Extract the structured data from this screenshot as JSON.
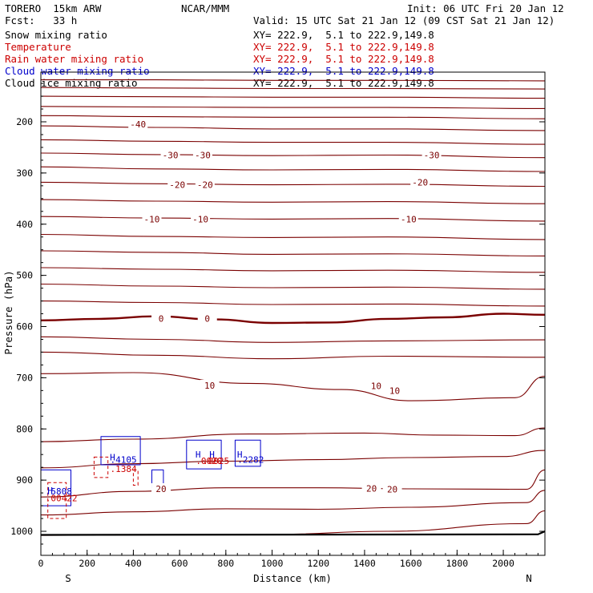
{
  "header": {
    "model": "TORERO  15km ARW",
    "center": "NCAR/MMM",
    "init": "Init: 06 UTC Fri 20 Jan 12",
    "fcst": "Fcst:   33 h",
    "valid": "Valid: 15 UTC Sat 21 Jan 12 (09 CST Sat 21 Jan 12)"
  },
  "legend": [
    {
      "name": "Snow mixing ratio",
      "xy": "XY= 222.9,  5.1 to 222.9,149.8",
      "color": "#000000"
    },
    {
      "name": "Temperature",
      "xy": "XY= 222.9,  5.1 to 222.9,149.8",
      "color": "#cc0000"
    },
    {
      "name": "Rain water mixing ratio",
      "xy": "XY= 222.9,  5.1 to 222.9,149.8",
      "color": "#cc0000"
    },
    {
      "name": "Cloud water mixing ratio",
      "xy": "XY= 222.9,  5.1 to 222.9,149.8",
      "color": "#0000cc"
    },
    {
      "name": "Cloud ice mixing ratio",
      "xy": "XY= 222.9,  5.1 to 222.9,149.8",
      "color": "#000000"
    }
  ],
  "colors": {
    "temperature": "#7a0000",
    "cloud_water": "#0000cc",
    "rain": "#cc0000",
    "ground": "#000000"
  },
  "chart_data": {
    "type": "line",
    "title": "Vertical cross-section",
    "xlabel": "Distance (km)",
    "ylabel": "Pressure (hPa)",
    "xlim": [
      0,
      2180
    ],
    "ylim": [
      100,
      1045
    ],
    "x_ticks": [
      0,
      200,
      400,
      600,
      800,
      1000,
      1200,
      1400,
      1600,
      1800,
      2000
    ],
    "y_ticks": [
      200,
      300,
      400,
      500,
      600,
      700,
      800,
      900,
      1000
    ],
    "x_end_labels": {
      "left": "S",
      "right": "N"
    },
    "temperature_isotherms": [
      {
        "level": -65,
        "x": [
          0,
          500,
          1000,
          1500,
          2180
        ],
        "p": [
          118,
          118,
          119,
          119,
          120
        ],
        "bold": false
      },
      {
        "level": -60,
        "x": [
          0,
          500,
          1000,
          1500,
          2180
        ],
        "p": [
          133,
          134,
          135,
          135,
          136
        ],
        "bold": false
      },
      {
        "level": -55,
        "x": [
          0,
          500,
          1000,
          1500,
          2180
        ],
        "p": [
          150,
          151,
          152,
          152,
          154
        ],
        "bold": false
      },
      {
        "level": -50,
        "x": [
          0,
          500,
          1000,
          1500,
          2180
        ],
        "p": [
          170,
          171,
          172,
          172,
          174
        ],
        "bold": false
      },
      {
        "level": -45,
        "x": [
          0,
          500,
          1000,
          1500,
          2180
        ],
        "p": [
          188,
          190,
          191,
          191,
          194
        ],
        "bold": false
      },
      {
        "level": -40,
        "x": [
          0,
          500,
          1000,
          1500,
          2180
        ],
        "p": [
          208,
          211,
          214,
          214,
          217
        ],
        "bold": false
      },
      {
        "level": -35,
        "x": [
          0,
          500,
          1000,
          1500,
          2180
        ],
        "p": [
          235,
          238,
          240,
          240,
          244
        ],
        "bold": false
      },
      {
        "level": -30,
        "x": [
          0,
          500,
          1000,
          1500,
          2180
        ],
        "p": [
          261,
          264,
          266,
          265,
          270
        ],
        "bold": false
      },
      {
        "level": -25,
        "x": [
          0,
          500,
          1000,
          1500,
          2180
        ],
        "p": [
          288,
          292,
          294,
          293,
          297
        ],
        "bold": false
      },
      {
        "level": -20,
        "x": [
          0,
          500,
          1000,
          1500,
          2180
        ],
        "p": [
          318,
          321,
          323,
          322,
          326
        ],
        "bold": false
      },
      {
        "level": -15,
        "x": [
          0,
          500,
          1000,
          1500,
          2180
        ],
        "p": [
          352,
          355,
          357,
          356,
          360
        ],
        "bold": false
      },
      {
        "level": -10,
        "x": [
          0,
          500,
          1000,
          1500,
          2180
        ],
        "p": [
          385,
          388,
          390,
          389,
          394
        ],
        "bold": false
      },
      {
        "level": -5,
        "x": [
          0,
          500,
          1000,
          1500,
          2180
        ],
        "p": [
          420,
          424,
          426,
          425,
          430
        ],
        "bold": false
      },
      {
        "level": -20,
        "x": [
          0,
          500,
          1000,
          1500,
          2180
        ],
        "p": [
          452,
          455,
          459,
          458,
          462
        ],
        "bold": false
      },
      {
        "level": -15,
        "x": [
          0,
          500,
          1000,
          1500,
          2180
        ],
        "p": [
          485,
          488,
          491,
          490,
          494
        ],
        "bold": false
      },
      {
        "level": -10,
        "x": [
          0,
          500,
          1000,
          1500,
          2180
        ],
        "p": [
          517,
          521,
          524,
          523,
          527
        ],
        "bold": false
      },
      {
        "level": -5,
        "x": [
          0,
          500,
          1000,
          1500,
          2180
        ],
        "p": [
          550,
          553,
          557,
          556,
          560
        ],
        "bold": false
      },
      {
        "level": 0,
        "x": [
          0,
          250,
          500,
          750,
          1000,
          1250,
          1500,
          1750,
          2000,
          2180
        ],
        "p": [
          588,
          585,
          580,
          586,
          593,
          592,
          585,
          582,
          575,
          577
        ],
        "bold": true
      },
      {
        "level": 5,
        "x": [
          0,
          500,
          1000,
          1500,
          2180
        ],
        "p": [
          620,
          625,
          631,
          628,
          626
        ],
        "bold": false
      },
      {
        "level": 5,
        "x": [
          0,
          500,
          1000,
          1500,
          2180
        ],
        "p": [
          650,
          656,
          663,
          658,
          660
        ],
        "bold": false
      },
      {
        "level": 10,
        "x": [
          0,
          400,
          900,
          1300,
          1600,
          2050,
          2180
        ],
        "p": [
          692,
          690,
          711,
          723,
          745,
          739,
          697
        ],
        "bold": false
      },
      {
        "level": 15,
        "x": [
          0,
          400,
          900,
          1400,
          1700,
          2050,
          2180
        ],
        "p": [
          825,
          820,
          810,
          808,
          812,
          813,
          798
        ],
        "bold": false
      },
      {
        "level": 20,
        "x": [
          0,
          400,
          800,
          1200,
          1600,
          2000,
          2180
        ],
        "p": [
          876,
          868,
          863,
          860,
          856,
          854,
          842
        ],
        "bold": false
      },
      {
        "level": 20,
        "x": [
          0,
          400,
          800,
          1200,
          1600,
          2100,
          2180
        ],
        "p": [
          933,
          922,
          915,
          915,
          917,
          918,
          880
        ],
        "bold": false
      },
      {
        "level": 25,
        "x": [
          0,
          400,
          800,
          1200,
          1600,
          2100,
          2180
        ],
        "p": [
          968,
          962,
          956,
          957,
          953,
          944,
          920
        ],
        "bold": false
      },
      {
        "level": 25,
        "x": [
          0,
          500,
          1000,
          1500,
          2100,
          2180
        ],
        "p": [
          1008,
          1007,
          1006,
          1000,
          985,
          960
        ],
        "bold": false
      }
    ],
    "contour_labels": [
      {
        "text": "-40",
        "x": 420,
        "p": 205
      },
      {
        "text": "-30",
        "x": 560,
        "p": 265
      },
      {
        "text": "-30",
        "x": 700,
        "p": 265
      },
      {
        "text": "-30",
        "x": 1690,
        "p": 265
      },
      {
        "text": "-20",
        "x": 590,
        "p": 323
      },
      {
        "text": "-20",
        "x": 710,
        "p": 323
      },
      {
        "text": "-20",
        "x": 1640,
        "p": 318
      },
      {
        "text": "-10",
        "x": 480,
        "p": 390
      },
      {
        "text": "-10",
        "x": 690,
        "p": 390
      },
      {
        "text": "-10",
        "x": 1590,
        "p": 390
      },
      {
        "text": "0",
        "x": 520,
        "p": 584
      },
      {
        "text": "0",
        "x": 720,
        "p": 584
      },
      {
        "text": "10",
        "x": 730,
        "p": 715
      },
      {
        "text": "10",
        "x": 1450,
        "p": 716
      },
      {
        "text": "10",
        "x": 1530,
        "p": 725
      },
      {
        "text": "20",
        "x": 520,
        "p": 917
      },
      {
        "text": "20",
        "x": 1430,
        "p": 916
      },
      {
        "text": "20",
        "x": 1520,
        "p": 918
      }
    ],
    "cloud_water_maxima": [
      {
        "label": "H",
        "x": 310,
        "p": 855
      },
      {
        "label": "H",
        "x": 680,
        "p": 850
      },
      {
        "label": "H",
        "x": 740,
        "p": 850
      },
      {
        "label": "H",
        "x": 860,
        "p": 850
      },
      {
        "label": "H",
        "x": 40,
        "p": 920
      }
    ],
    "cloud_water_values": [
      {
        "text": ".4105",
        "x": 300,
        "p": 860
      },
      {
        "text": ".2282",
        "x": 850,
        "p": 860
      },
      {
        "text": ".5808",
        "x": 20,
        "p": 922
      }
    ],
    "rain_values": [
      {
        "text": ".1384",
        "x": 300,
        "p": 878
      },
      {
        "text": ".0020",
        "x": 670,
        "p": 862
      },
      {
        "text": ".0025",
        "x": 700,
        "p": 862
      },
      {
        "text": ".00422",
        "x": 20,
        "p": 935
      }
    ]
  }
}
